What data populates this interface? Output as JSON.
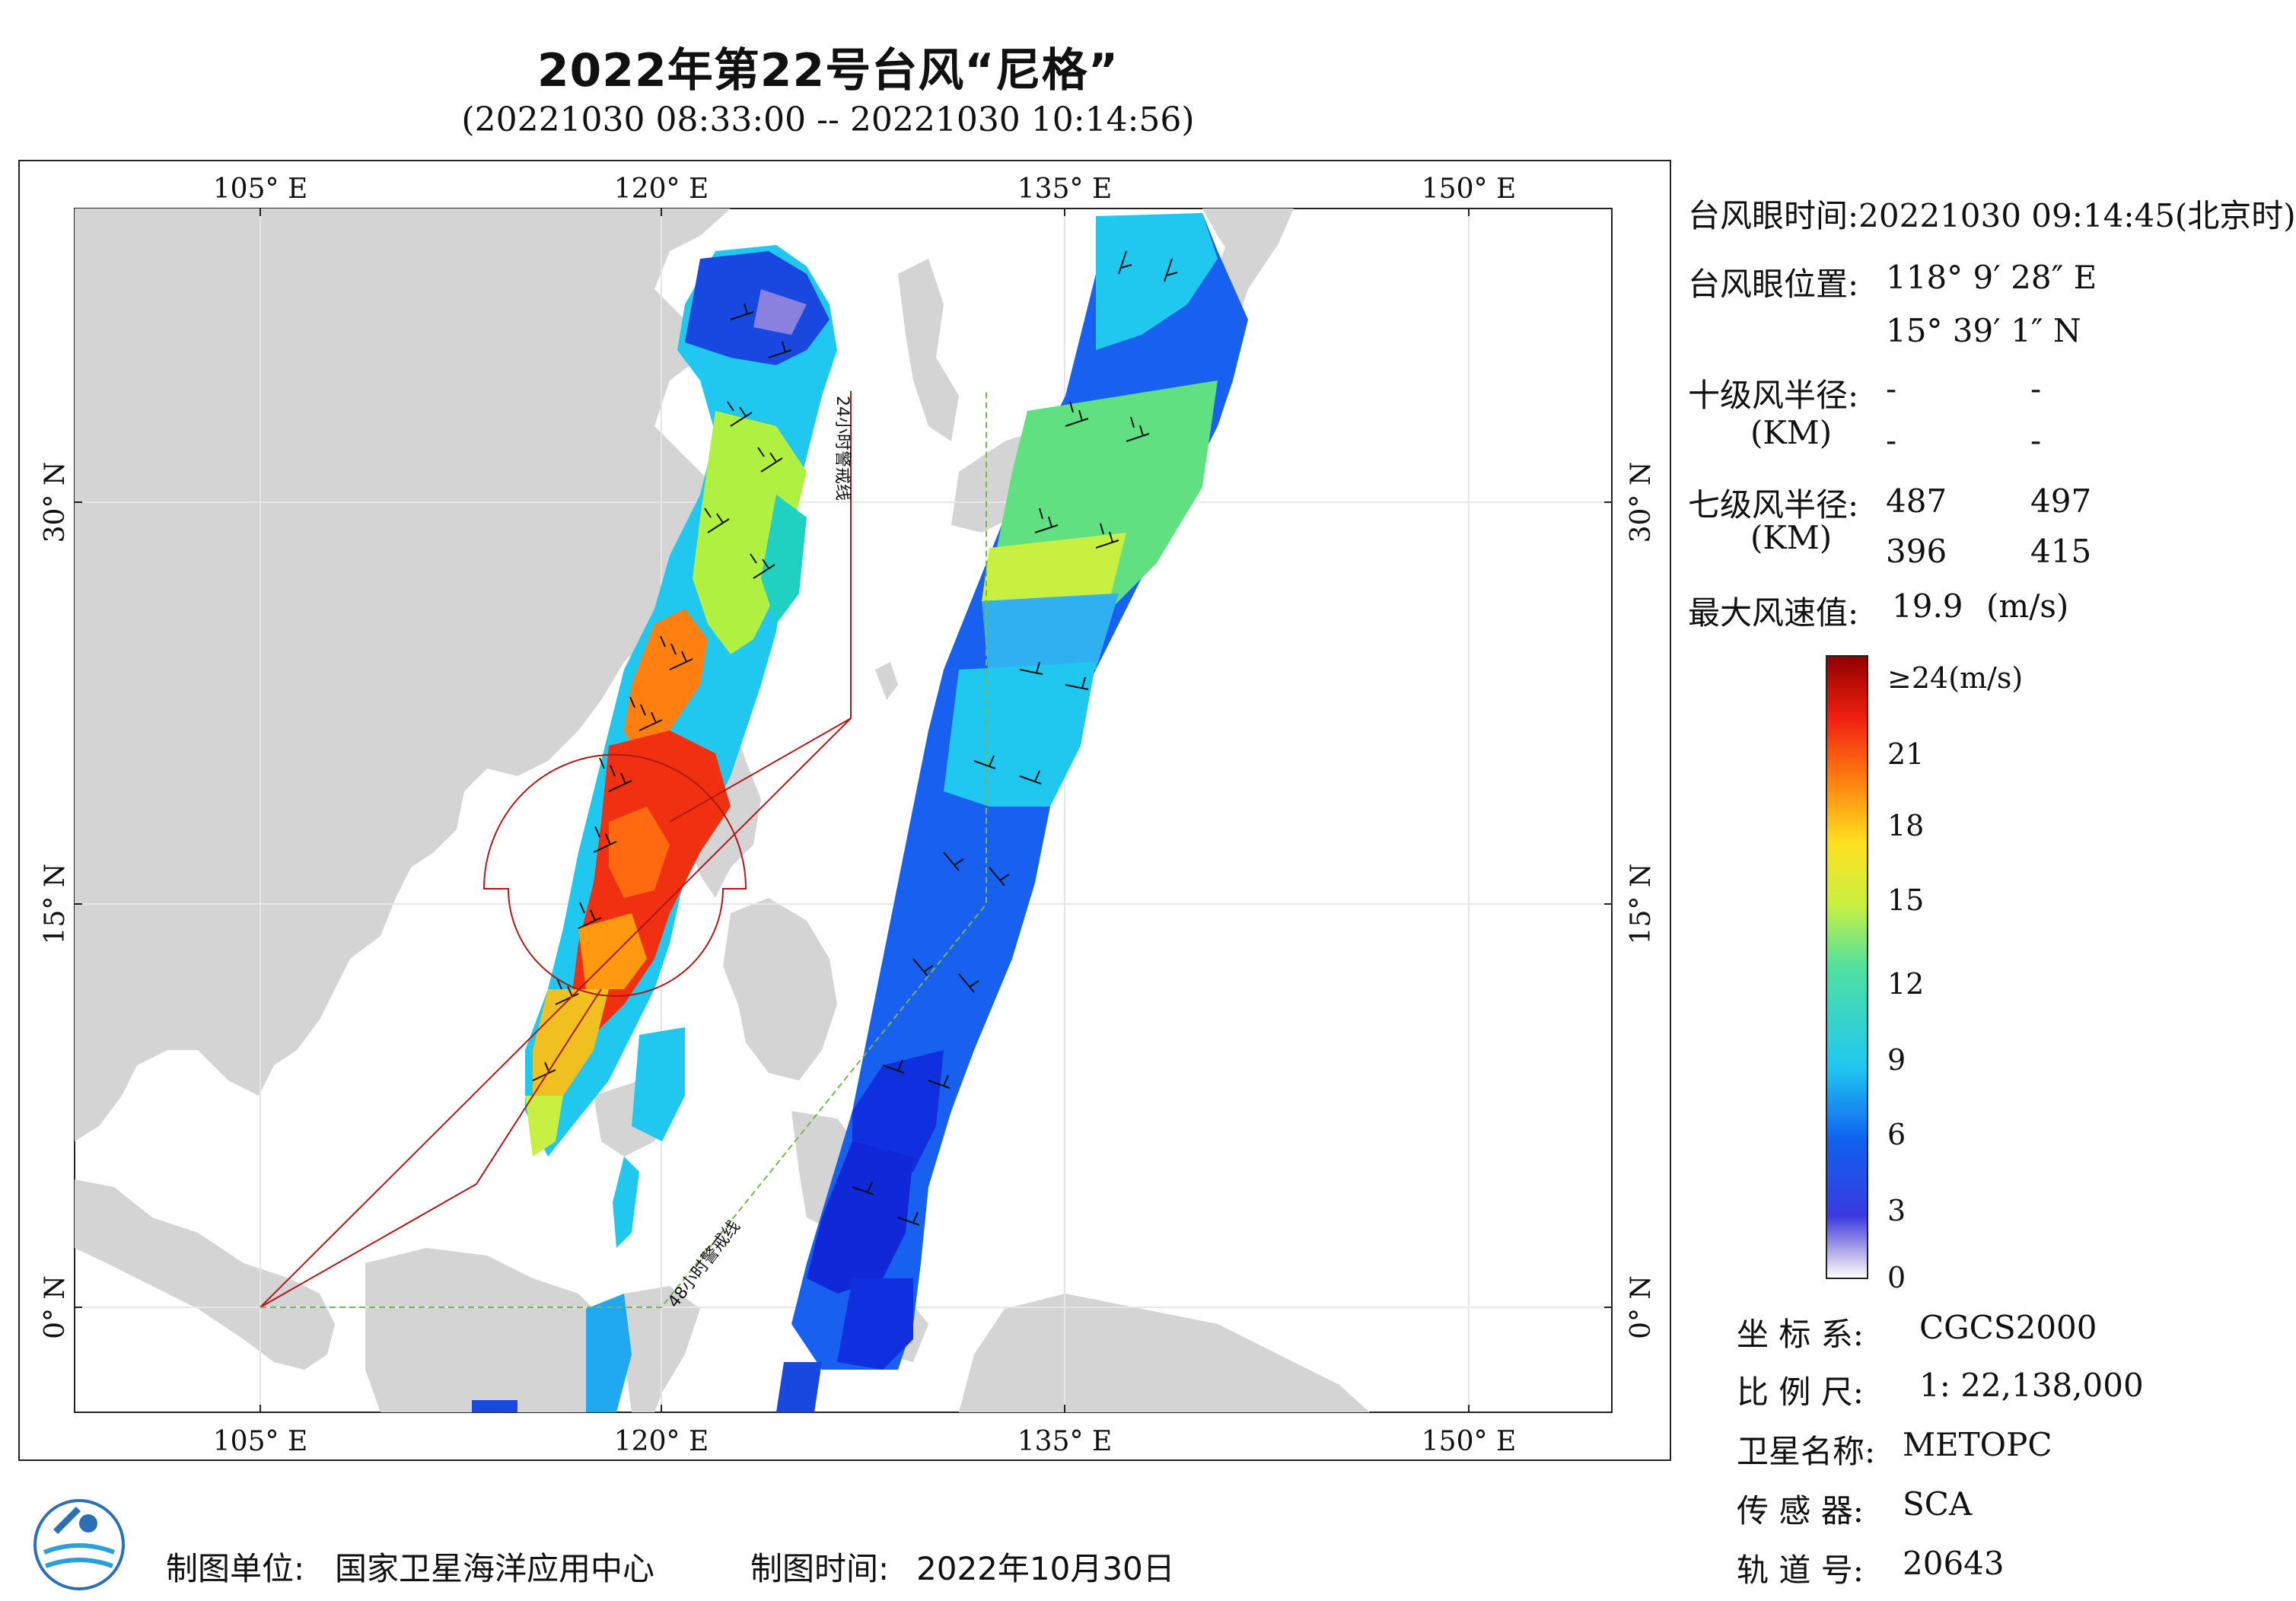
{
  "title": "2022年第22号台风“尼格”",
  "subtitle": "(20221030 08:33:00 -- 20221030 10:14:56)",
  "map": {
    "lon_ticks_top": [
      "105° E",
      "120° E",
      "135° E",
      "150° E"
    ],
    "lon_ticks_bottom": [
      "105° E",
      "120° E",
      "135° E",
      "150° E"
    ],
    "lat_ticks_left": [
      "30° N",
      "15° N",
      "0° N"
    ],
    "lat_ticks_right": [
      "30° N",
      "15° N",
      "0° N"
    ],
    "warning_line_24h": "24小时警戒线",
    "warning_line_48h": "48小时警戒线",
    "colors": {
      "land": "#d4d4d4",
      "ocean": "#ffffff",
      "warning_24h": "#b01818",
      "warning_48h": "#7ab648"
    }
  },
  "info": {
    "eye_time_label": "台风眼时间:",
    "eye_time_value": "20221030 09:14:45(北京时)",
    "eye_pos_label": "台风眼位置:",
    "eye_lon": "118° 9′ 28″ E",
    "eye_lat": "15° 39′ 1″ N",
    "r10_label": "十级风半径:",
    "r10_unit": "(KM)",
    "r10_values": [
      "-",
      "-",
      "-",
      "-"
    ],
    "r7_label": "七级风半径:",
    "r7_unit": "(KM)",
    "r7_values": [
      "487",
      "497",
      "396",
      "415"
    ],
    "max_wind_label": "最大风速值:",
    "max_wind_value": "19.9",
    "max_wind_unit": "(m/s)"
  },
  "colorbar": {
    "labels": [
      "≥24(m/s)",
      "21",
      "18",
      "15",
      "12",
      "9",
      "6",
      "3",
      "0"
    ]
  },
  "meta": {
    "crs_label": "坐 标 系:",
    "crs_value": "CGCS2000",
    "scale_label": "比 例 尺:",
    "scale_value": "1: 22,138,000",
    "satellite_label": "卫星名称:",
    "satellite_value": "METOPC",
    "sensor_label": "传 感 器:",
    "sensor_value": "SCA",
    "orbit_label": "轨 道 号:",
    "orbit_value": "20643"
  },
  "footer": {
    "unit_label": "制图单位:",
    "unit_value": "国家卫星海洋应用中心",
    "date_label": "制图时间:",
    "date_value": "2022年10月30日"
  }
}
